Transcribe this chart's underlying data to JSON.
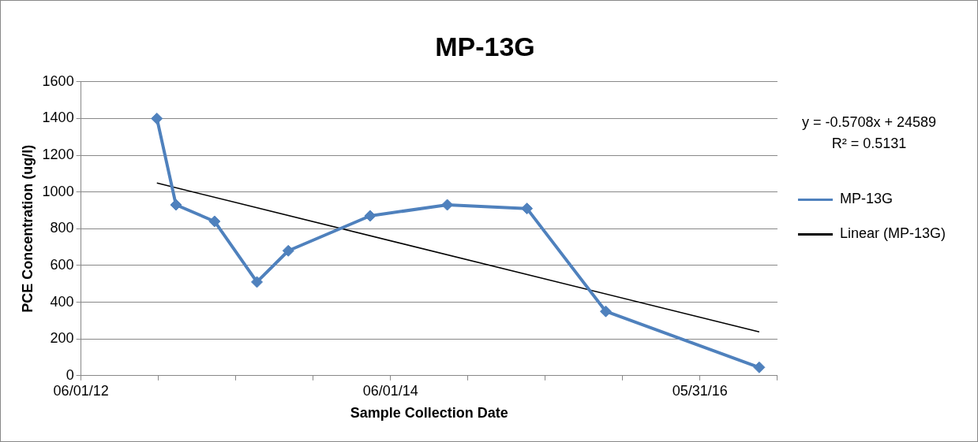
{
  "chart_data": {
    "type": "line",
    "title": "MP-13G",
    "xlabel": "Sample Collection Date",
    "ylabel": "PCE Concentration (ug/l)",
    "series": [
      {
        "name": "MP-13G",
        "color": "#4f81bd",
        "marker": "diamond",
        "x": [
          "2012-11-27",
          "2013-01-11",
          "2013-04-12",
          "2013-07-21",
          "2013-10-03",
          "2014-04-14",
          "2014-10-13",
          "2015-04-19",
          "2015-10-22",
          "2016-10-18"
        ],
        "values": [
          1400,
          930,
          840,
          510,
          680,
          870,
          930,
          910,
          350,
          45
        ]
      },
      {
        "name": "Linear (MP-13G)",
        "color": "#000000",
        "marker": "none",
        "x": [
          "2012-11-27",
          "2016-10-18"
        ],
        "values": [
          1049,
          238
        ]
      }
    ],
    "xlim": [
      "2012-06-01",
      "2016-11-30"
    ],
    "xticks": [
      {
        "value": "2012-06-01",
        "label": "06/01/12"
      },
      {
        "value": "2012-12-01",
        "label": null
      },
      {
        "value": "2013-06-01",
        "label": null
      },
      {
        "value": "2013-12-01",
        "label": null
      },
      {
        "value": "2014-06-01",
        "label": "06/01/14"
      },
      {
        "value": "2014-12-01",
        "label": null
      },
      {
        "value": "2015-06-01",
        "label": null
      },
      {
        "value": "2015-12-01",
        "label": null
      },
      {
        "value": "2016-05-31",
        "label": "05/31/16"
      },
      {
        "value": "2016-11-30",
        "label": null
      }
    ],
    "ylim": [
      0,
      1600
    ],
    "yticks": [
      0,
      200,
      400,
      600,
      800,
      1000,
      1200,
      1400,
      1600
    ],
    "grid": "y",
    "legend": "right",
    "line_style": "solid",
    "annotations": [
      "y = -0.5708x + 24589",
      "R² = 0.5131"
    ]
  }
}
